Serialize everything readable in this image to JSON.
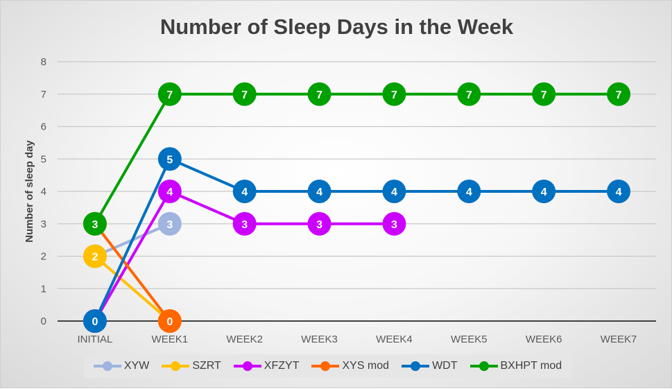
{
  "chart_data": {
    "type": "line",
    "title": "Number of Sleep Days in the Week",
    "xlabel": "",
    "ylabel": "Number of sleep day",
    "ylim": [
      0,
      8
    ],
    "yticks": [
      0,
      1,
      2,
      3,
      4,
      5,
      6,
      7,
      8
    ],
    "grid": true,
    "legend": "bottom",
    "categories": [
      "INITIAL",
      "WEEK1",
      "WEEK2",
      "WEEK3",
      "WEEK4",
      "WEEK5",
      "WEEK6",
      "WEEK7"
    ],
    "series": [
      {
        "name": "XYW",
        "color": "#9fb4de",
        "values": [
          2,
          3,
          null,
          null,
          null,
          null,
          null,
          null
        ]
      },
      {
        "name": "SZRT",
        "color": "#ffc000",
        "values": [
          2,
          0,
          null,
          null,
          null,
          null,
          null,
          null
        ]
      },
      {
        "name": "XFZYT",
        "color": "#cc00ff",
        "values": [
          0,
          4,
          3,
          3,
          3,
          null,
          null,
          null
        ]
      },
      {
        "name": "XYS mod",
        "color": "#ff6600",
        "values": [
          3,
          0,
          null,
          null,
          null,
          null,
          null,
          null
        ]
      },
      {
        "name": "WDT",
        "color": "#0070c0",
        "values": [
          0,
          5,
          4,
          4,
          4,
          4,
          4,
          4
        ]
      },
      {
        "name": "BXHPT mod",
        "color": "#00a000",
        "values": [
          3,
          7,
          7,
          7,
          7,
          7,
          7,
          7
        ]
      }
    ]
  }
}
